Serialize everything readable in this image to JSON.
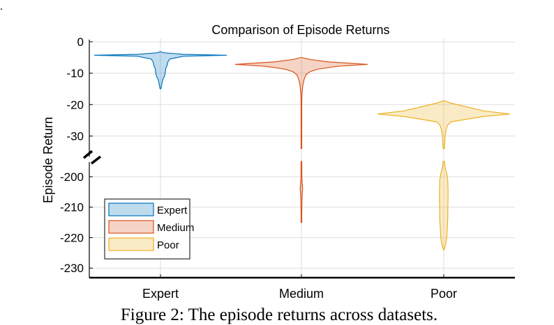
{
  "page": {
    "leading_mark": "."
  },
  "caption": "Figure 2: The episode returns across datasets.",
  "colors": {
    "Expert": "#0072bd",
    "Medium": "#d95319",
    "Poor": "#edb120",
    "grid": "#dedede",
    "axis": "#000000"
  },
  "chart_data": {
    "type": "violin",
    "title": "Comparison of Episode Returns",
    "xlabel": "",
    "ylabel": "Episode Return",
    "categories": [
      "Expert",
      "Medium",
      "Poor"
    ],
    "axis_break": true,
    "y_segments": [
      {
        "ylim": [
          -35,
          0
        ],
        "ticks": [
          0,
          -10,
          -20,
          -30
        ]
      },
      {
        "ylim": [
          -232,
          -195
        ],
        "ticks": [
          -200,
          -210,
          -220,
          -230
        ]
      }
    ],
    "grid": true,
    "legend": {
      "position": "bottom-left",
      "entries": [
        "Expert",
        "Medium",
        "Poor"
      ]
    },
    "series": [
      {
        "name": "Expert",
        "segments": [
          {
            "profile": [
              [
                -3.2,
                0.0
              ],
              [
                -3.5,
                0.05
              ],
              [
                -4.0,
                0.35
              ],
              [
                -4.3,
                1.0
              ],
              [
                -4.6,
                0.35
              ],
              [
                -5.5,
                0.14
              ],
              [
                -6.5,
                0.11
              ],
              [
                -7.5,
                0.1
              ],
              [
                -8.5,
                0.08
              ],
              [
                -10.0,
                0.07
              ],
              [
                -11.0,
                0.06
              ],
              [
                -12.0,
                0.035
              ],
              [
                -13.5,
                0.02
              ],
              [
                -15.0,
                0.0
              ]
            ]
          }
        ]
      },
      {
        "name": "Medium",
        "segments": [
          {
            "profile": [
              [
                -5.0,
                0.0
              ],
              [
                -5.6,
                0.12
              ],
              [
                -6.4,
                0.4
              ],
              [
                -7.2,
                1.0
              ],
              [
                -7.8,
                0.55
              ],
              [
                -8.7,
                0.25
              ],
              [
                -9.5,
                0.13
              ],
              [
                -10.5,
                0.07
              ],
              [
                -12.0,
                0.04
              ],
              [
                -14.0,
                0.02
              ],
              [
                -16.5,
                0.01
              ],
              [
                -19.0,
                0.005
              ],
              [
                -34.0,
                0.005
              ]
            ]
          },
          {
            "profile": [
              [
                -195.0,
                0.005
              ],
              [
                -200.0,
                0.006
              ],
              [
                -202.0,
                0.012
              ],
              [
                -204.0,
                0.018
              ],
              [
                -206.0,
                0.012
              ],
              [
                -208.0,
                0.008
              ],
              [
                -212.0,
                0.004
              ],
              [
                -215.0,
                0.0
              ]
            ]
          }
        ]
      },
      {
        "name": "Poor",
        "segments": [
          {
            "profile": [
              [
                -18.8,
                0.0
              ],
              [
                -19.5,
                0.1
              ],
              [
                -20.5,
                0.3
              ],
              [
                -22.0,
                0.6
              ],
              [
                -23.0,
                1.0
              ],
              [
                -23.8,
                0.6
              ],
              [
                -24.8,
                0.3
              ],
              [
                -25.5,
                0.11
              ],
              [
                -26.5,
                0.06
              ],
              [
                -28.0,
                0.035
              ],
              [
                -30.0,
                0.02
              ],
              [
                -34.0,
                0.01
              ]
            ]
          },
          {
            "profile": [
              [
                -195.0,
                0.01
              ],
              [
                -197.0,
                0.02
              ],
              [
                -199.0,
                0.045
              ],
              [
                -201.0,
                0.06
              ],
              [
                -205.0,
                0.065
              ],
              [
                -210.0,
                0.062
              ],
              [
                -214.0,
                0.06
              ],
              [
                -218.0,
                0.05
              ],
              [
                -220.0,
                0.045
              ],
              [
                -222.0,
                0.03
              ],
              [
                -224.0,
                0.0
              ]
            ]
          }
        ]
      }
    ]
  }
}
